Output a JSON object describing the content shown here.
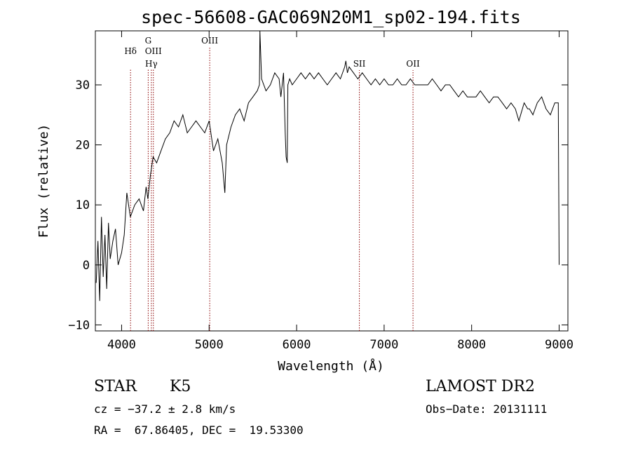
{
  "chart_data": {
    "type": "line",
    "title": "spec-56608-GAC069N20M1_sp02-194.fits",
    "xlabel": "Wavelength (Å)",
    "ylabel": "Flux (relative)",
    "xlim": [
      3700,
      9100
    ],
    "ylim": [
      -11,
      39
    ],
    "xticks": [
      4000,
      5000,
      6000,
      7000,
      8000,
      9000
    ],
    "yticks": [
      -10,
      0,
      10,
      20,
      30
    ],
    "line_color": "#000000",
    "marker_color": "#8b0000",
    "series": [
      {
        "x": [
          3710,
          3730,
          3750,
          3770,
          3790,
          3810,
          3830,
          3850,
          3870,
          3900,
          3930,
          3960,
          4000,
          4030,
          4060,
          4100,
          4150,
          4200,
          4250,
          4280,
          4300,
          4330,
          4360,
          4400,
          4450,
          4500,
          4550,
          4600,
          4650,
          4700,
          4750,
          4800,
          4850,
          4900,
          4950,
          5000,
          5050,
          5100,
          5150,
          5180,
          5200,
          5250,
          5300,
          5350,
          5400,
          5450,
          5500,
          5550,
          5575,
          5580,
          5600,
          5650,
          5700,
          5750,
          5800,
          5820,
          5850,
          5870,
          5880,
          5893,
          5900,
          5920,
          5950,
          6000,
          6050,
          6100,
          6150,
          6200,
          6250,
          6300,
          6350,
          6400,
          6450,
          6500,
          6550,
          6563,
          6580,
          6600,
          6650,
          6700,
          6750,
          6800,
          6850,
          6900,
          6950,
          7000,
          7050,
          7100,
          7150,
          7200,
          7250,
          7300,
          7350,
          7400,
          7450,
          7500,
          7550,
          7600,
          7650,
          7700,
          7750,
          7800,
          7850,
          7900,
          7950,
          8000,
          8050,
          8100,
          8150,
          8200,
          8250,
          8300,
          8350,
          8400,
          8450,
          8500,
          8540,
          8560,
          8600,
          8640,
          8660,
          8700,
          8750,
          8800,
          8850,
          8900,
          8950,
          8990,
          9000
        ],
        "values": [
          -3,
          4,
          -6,
          8,
          -2,
          5,
          -4,
          7,
          1,
          4,
          6,
          0,
          2,
          5,
          12,
          8,
          10,
          11,
          9,
          13,
          11,
          15,
          18,
          17,
          19,
          21,
          22,
          24,
          23,
          25,
          22,
          23,
          24,
          23,
          22,
          24,
          19,
          21,
          17,
          12,
          20,
          23,
          25,
          26,
          24,
          27,
          28,
          29,
          30,
          39,
          31,
          29,
          30,
          32,
          31,
          28,
          32,
          22,
          18,
          17,
          30,
          31,
          30,
          31,
          32,
          31,
          32,
          31,
          32,
          31,
          30,
          31,
          32,
          31,
          33,
          34,
          32,
          33,
          32,
          31,
          32,
          31,
          30,
          31,
          30,
          31,
          30,
          30,
          31,
          30,
          30,
          31,
          30,
          30,
          30,
          30,
          31,
          30,
          29,
          30,
          30,
          29,
          28,
          29,
          28,
          28,
          28,
          29,
          28,
          27,
          28,
          28,
          27,
          26,
          27,
          26,
          24,
          25,
          27,
          26,
          26,
          25,
          27,
          28,
          26,
          25,
          27,
          27,
          0
        ]
      }
    ],
    "line_markers": [
      {
        "label": "Hδ",
        "x": 4102
      },
      {
        "label": "G",
        "x": 4304
      },
      {
        "label": "OIII",
        "x": 4363
      },
      {
        "label": "Hγ",
        "x": 4340
      },
      {
        "label": "OIII",
        "x": 5007
      },
      {
        "label": "SII",
        "x": 6717
      },
      {
        "label": "OII",
        "x": 7330
      }
    ]
  },
  "info": {
    "class": "STAR",
    "subclass": "K5",
    "survey": "LAMOST DR2",
    "cz": "cz = −37.2 ± 2.8 km/s",
    "obs_date": "Obs−Date: 20131111",
    "radec": "RA =  67.86405, DEC =  19.53300"
  }
}
